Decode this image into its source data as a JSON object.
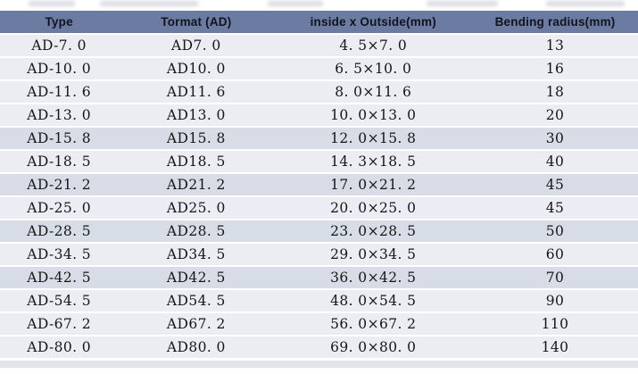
{
  "table": {
    "columns": [
      "Type",
      "Tormat (AD)",
      "inside x Outside(mm)",
      "Bending radius(mm)"
    ],
    "column_keys": [
      "type",
      "tormat",
      "inside_x_outside_mm",
      "bending_radius_mm"
    ],
    "rows": [
      [
        "AD-7. 0",
        "AD7. 0",
        "4. 5×7. 0",
        "13"
      ],
      [
        "AD-10. 0",
        "AD10. 0",
        "6. 5×10. 0",
        "16"
      ],
      [
        "AD-11. 6",
        "AD11. 6",
        "8. 0×11. 6",
        "18"
      ],
      [
        "AD-13. 0",
        "AD13. 0",
        "10. 0×13. 0",
        "20"
      ],
      [
        "AD-15. 8",
        "AD15. 8",
        "12. 0×15. 8",
        "30"
      ],
      [
        "AD-18. 5",
        "AD18. 5",
        "14. 3×18. 5",
        "40"
      ],
      [
        "AD-21. 2",
        "AD21. 2",
        "17. 0×21. 2",
        "45"
      ],
      [
        "AD-25. 0",
        "AD25. 0",
        "20. 0×25. 0",
        "45"
      ],
      [
        "AD-28. 5",
        "AD28. 5",
        "23. 0×28. 5",
        "50"
      ],
      [
        "AD-34. 5",
        "AD34. 5",
        "29. 0×34. 5",
        "60"
      ],
      [
        "AD-42. 5",
        "AD42. 5",
        "36. 0×42. 5",
        "70"
      ],
      [
        "AD-54. 5",
        "AD54. 5",
        "48. 0×54. 5",
        "90"
      ],
      [
        "AD-67. 2",
        "AD67. 2",
        "56. 0×67. 2",
        "110"
      ],
      [
        "AD-80. 0",
        "AD80. 0",
        "69. 0×80. 0",
        "140"
      ]
    ],
    "highlighted_row_indices": [
      4,
      6,
      8,
      10
    ],
    "column_widths_percent": [
      18.5,
      24.5,
      31,
      26
    ]
  },
  "colors": {
    "header_bg": "#6b7ba1",
    "header_text": "#10141f",
    "row_light": "#ebedf3",
    "row_dark": "#d8dce6",
    "cell_text": "#161616",
    "bottom_edge": "#dcdfe6"
  }
}
